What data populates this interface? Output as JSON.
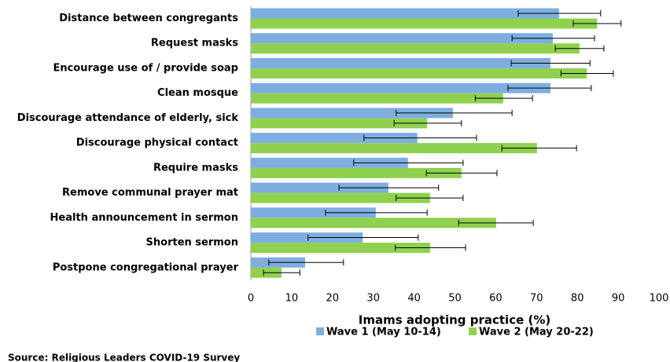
{
  "chart_data": {
    "type": "bar",
    "orientation": "horizontal",
    "x_label": "Imams adopting practice (%)",
    "source": "Source: Religious Leaders COVID-19 Survey",
    "categories": [
      "Distance between congregants",
      "Request masks",
      "Encourage use of / provide soap",
      "Clean mosque",
      "Discourage attendance of elderly, sick",
      "Discourage physical contact",
      "Require masks",
      "Remove communal prayer mat",
      "Health announcement in sermon",
      "Shorten sermon",
      "Postpone congregational prayer"
    ],
    "series": [
      {
        "name": "Wave 1 (May 10-14)",
        "color": "#7eaee0",
        "values": [
          75.5,
          74,
          73.4,
          73.4,
          49.5,
          40.8,
          38.5,
          33.7,
          30.6,
          27.4,
          13.3
        ],
        "ci": [
          [
            65.5,
            85.7
          ],
          [
            64,
            84.2
          ],
          [
            63.8,
            83.1
          ],
          [
            63,
            83.4
          ],
          [
            35.6,
            64
          ],
          [
            27.7,
            55.3
          ],
          [
            25.2,
            52
          ],
          [
            21.6,
            46
          ],
          [
            18.3,
            43.2
          ],
          [
            14,
            41
          ],
          [
            4.4,
            22.7
          ]
        ]
      },
      {
        "name": "Wave 2 (May 20-22)",
        "color": "#8fd14f",
        "values": [
          84.8,
          80.5,
          82.3,
          61.8,
          43.2,
          70.1,
          51.6,
          43.9,
          60.1,
          43.9,
          7.5
        ],
        "ci": [
          [
            79,
            90.7
          ],
          [
            74.6,
            86.5
          ],
          [
            76,
            88.8
          ],
          [
            55,
            69
          ],
          [
            35.1,
            51.6
          ],
          [
            61.5,
            79.8
          ],
          [
            43,
            60.3
          ],
          [
            35.6,
            52
          ],
          [
            50.9,
            69.2
          ],
          [
            35.4,
            52.6
          ],
          [
            3.1,
            12
          ]
        ]
      }
    ],
    "xlim": [
      0,
      100
    ],
    "xticks": [
      0,
      10,
      20,
      30,
      40,
      50,
      60,
      70,
      80,
      90,
      100
    ],
    "grid": false,
    "legend": "bottom"
  }
}
